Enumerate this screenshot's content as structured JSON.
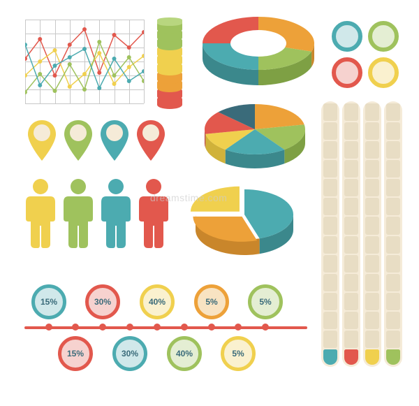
{
  "palette": {
    "red": "#e2584d",
    "orange": "#eda139",
    "yellow": "#f0d04e",
    "green": "#9fc25d",
    "teal": "#4cabb0",
    "blue": "#3a6b7a",
    "cream": "#f5ebd8",
    "grid": "#c8c8c8",
    "bg": "#ffffff"
  },
  "line_chart": {
    "type": "line",
    "rows": 6,
    "cols": 8,
    "xlim": [
      0,
      8
    ],
    "ylim": [
      0,
      6
    ],
    "series": [
      {
        "color": "#e2584d",
        "points": [
          [
            0,
            3.2
          ],
          [
            1,
            4.6
          ],
          [
            2,
            2.0
          ],
          [
            3,
            4.2
          ],
          [
            4,
            5.3
          ],
          [
            5,
            2.2
          ],
          [
            6,
            4.9
          ],
          [
            7,
            4.0
          ],
          [
            8,
            5.1
          ]
        ]
      },
      {
        "color": "#f0d04e",
        "points": [
          [
            0,
            2.0
          ],
          [
            1,
            3.0
          ],
          [
            2,
            3.8
          ],
          [
            3,
            1.2
          ],
          [
            4,
            2.1
          ],
          [
            5,
            3.6
          ],
          [
            6,
            1.4
          ],
          [
            7,
            2.6
          ],
          [
            8,
            3.4
          ]
        ]
      },
      {
        "color": "#9fc25d",
        "points": [
          [
            0,
            0.8
          ],
          [
            1,
            2.1
          ],
          [
            2,
            0.9
          ],
          [
            3,
            2.8
          ],
          [
            4,
            1.0
          ],
          [
            5,
            4.4
          ],
          [
            6,
            2.0
          ],
          [
            7,
            3.3
          ],
          [
            8,
            1.6
          ]
        ]
      },
      {
        "color": "#4cabb0",
        "points": [
          [
            0,
            4.2
          ],
          [
            1,
            1.3
          ],
          [
            2,
            2.7
          ],
          [
            3,
            3.3
          ],
          [
            4,
            3.9
          ],
          [
            5,
            1.1
          ],
          [
            6,
            3.2
          ],
          [
            7,
            1.6
          ],
          [
            8,
            2.3
          ]
        ]
      }
    ],
    "marker_radius": 3,
    "line_width": 1.5
  },
  "cylinder": {
    "segments": 10,
    "seg_height": 14,
    "colors": [
      "#9fc25d",
      "#9fc25d",
      "#9fc25d",
      "#f0d04e",
      "#f0d04e",
      "#f0d04e",
      "#eda139",
      "#eda139",
      "#e2584d",
      "#e2584d"
    ],
    "top_color": "#b8d67f"
  },
  "donut_3d": {
    "type": "donut",
    "slices": [
      {
        "color": "#eda139",
        "shade": "#c9862b",
        "pct": 30
      },
      {
        "color": "#9fc25d",
        "shade": "#7ea044",
        "pct": 20
      },
      {
        "color": "#4cabb0",
        "shade": "#3b888c",
        "pct": 25
      },
      {
        "color": "#e2584d",
        "shade": "#b8423a",
        "pct": 25
      }
    ],
    "inner_ratio": 0.5,
    "depth": 22
  },
  "pie_3d": {
    "type": "pie",
    "slices": [
      {
        "color": "#eda139",
        "shade": "#c9862b",
        "pct": 22
      },
      {
        "color": "#9fc25d",
        "shade": "#7ea044",
        "pct": 18
      },
      {
        "color": "#4cabb0",
        "shade": "#3b888c",
        "pct": 20
      },
      {
        "color": "#f0d04e",
        "shade": "#d0b23a",
        "pct": 12
      },
      {
        "color": "#e2584d",
        "shade": "#b8423a",
        "pct": 15
      },
      {
        "color": "#3a6b7a",
        "shade": "#2a4f5a",
        "pct": 13
      }
    ],
    "depth": 20
  },
  "pie_exploded": {
    "type": "pie",
    "slices": [
      {
        "color": "#4cabb0",
        "shade": "#3b888c",
        "pct": 45,
        "explode": 0
      },
      {
        "color": "#eda139",
        "shade": "#c9862b",
        "pct": 30,
        "explode": 6
      },
      {
        "color": "#f0d04e",
        "shade": "#d0b23a",
        "pct": 25,
        "explode": 10
      }
    ],
    "depth": 22
  },
  "pins": [
    {
      "fill": "#f0d04e",
      "stroke": "#d0b23a"
    },
    {
      "fill": "#9fc25d",
      "stroke": "#7ea044"
    },
    {
      "fill": "#4cabb0",
      "stroke": "#3b888c"
    },
    {
      "fill": "#e2584d",
      "stroke": "#b8423a"
    }
  ],
  "pin_inner": "#f5ebd8",
  "people": [
    {
      "fill": "#f0d04e"
    },
    {
      "fill": "#9fc25d"
    },
    {
      "fill": "#4cabb0"
    },
    {
      "fill": "#e2584d"
    }
  ],
  "circles_tr": [
    {
      "border": "#4cabb0",
      "fill": "#d0e8ea"
    },
    {
      "border": "#9fc25d",
      "fill": "#e4eed3"
    },
    {
      "border": "#e2584d",
      "fill": "#f6d2cf"
    },
    {
      "border": "#f0d04e",
      "fill": "#faf1cf"
    }
  ],
  "vbars": {
    "count": 4,
    "segs_per_bar": 13,
    "track_color": "#f5ebd8",
    "seg_color": "#e8ddc4",
    "caps": [
      "#4cabb0",
      "#e2584d",
      "#f0d04e",
      "#9fc25d"
    ]
  },
  "timeline": {
    "line_color": "#e2584d",
    "top": [
      {
        "label": "15%",
        "x": 35,
        "border": "#4cabb0",
        "fill": "#d0e8ea"
      },
      {
        "label": "30%",
        "x": 112,
        "border": "#e2584d",
        "fill": "#f6d2cf"
      },
      {
        "label": "40%",
        "x": 190,
        "border": "#f0d04e",
        "fill": "#faf1cf"
      },
      {
        "label": "5%",
        "x": 268,
        "border": "#eda139",
        "fill": "#f8e3c2"
      },
      {
        "label": "5%",
        "x": 345,
        "border": "#9fc25d",
        "fill": "#e4eed3"
      }
    ],
    "bottom": [
      {
        "label": "15%",
        "x": 73,
        "border": "#e2584d",
        "fill": "#f6d2cf"
      },
      {
        "label": "30%",
        "x": 151,
        "border": "#4cabb0",
        "fill": "#d0e8ea"
      },
      {
        "label": "40%",
        "x": 229,
        "border": "#9fc25d",
        "fill": "#e4eed3"
      },
      {
        "label": "5%",
        "x": 306,
        "border": "#f0d04e",
        "fill": "#faf1cf"
      }
    ]
  },
  "watermark": "dreamstime.com"
}
